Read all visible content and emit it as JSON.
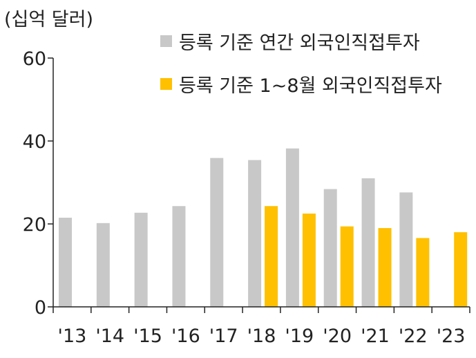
{
  "chart_data": {
    "type": "bar",
    "unit_label": "(십억 달러)",
    "categories": [
      "'13",
      "'14",
      "'15",
      "'16",
      "'17",
      "'18",
      "'19",
      "'20",
      "'21",
      "'22",
      "'23"
    ],
    "series": [
      {
        "name": "등록 기준 연간 외국인직접투자",
        "color": "#c8c8c8",
        "values": [
          21.5,
          20.2,
          22.7,
          24.3,
          35.9,
          35.4,
          38.2,
          28.4,
          31.0,
          27.6,
          null
        ]
      },
      {
        "name": "등록 기준 1~8월 외국인직접투자",
        "color": "#ffc000",
        "values": [
          null,
          null,
          null,
          null,
          null,
          24.3,
          22.5,
          19.4,
          19.0,
          16.6,
          18.0
        ]
      }
    ],
    "yticks": [
      0,
      20,
      40,
      60
    ],
    "ylim": [
      0,
      60
    ],
    "legend_position": "top-right",
    "grid": false
  }
}
